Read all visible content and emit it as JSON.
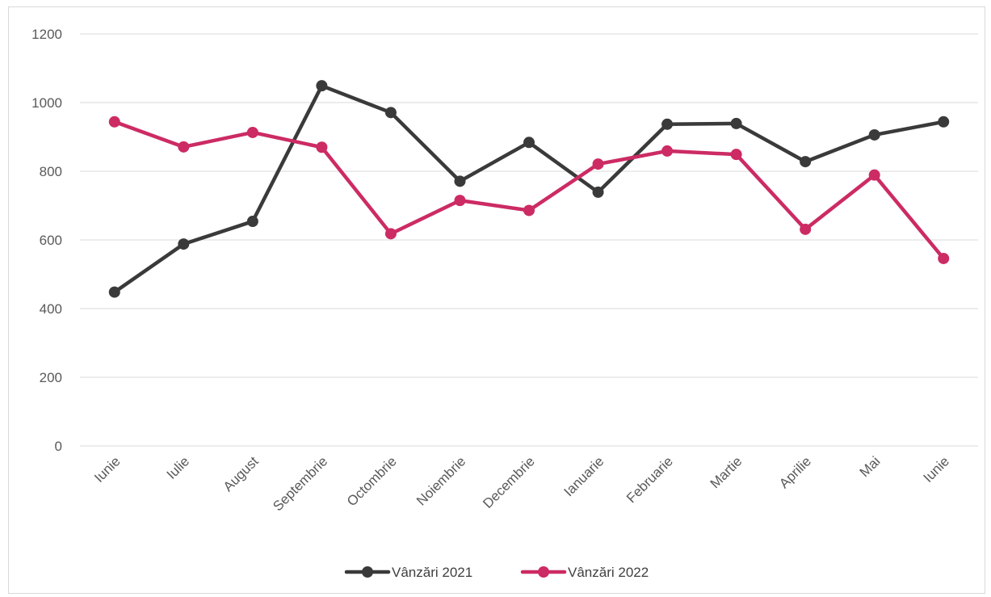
{
  "chart_data": {
    "type": "line",
    "categories": [
      "Iunie",
      "Iulie",
      "August",
      "Septembrie",
      "Octombrie",
      "Noiembrie",
      "Decembrie",
      "Ianuarie",
      "Februarie",
      "Martie",
      "Aprilie",
      "Mai",
      "Iunie"
    ],
    "series": [
      {
        "name": "Vânzări 2021",
        "color": "#3a3a3a",
        "values": [
          448,
          588,
          654,
          1049,
          971,
          771,
          884,
          739,
          937,
          939,
          828,
          906,
          944
        ]
      },
      {
        "name": "Vânzări 2022",
        "color": "#cc2b64",
        "values": [
          944,
          871,
          913,
          870,
          618,
          715,
          686,
          821,
          859,
          849,
          631,
          789,
          546
        ]
      }
    ],
    "ylim": [
      0,
      1200
    ],
    "yticks": [
      0,
      200,
      400,
      600,
      800,
      1000,
      1200
    ],
    "grid": true,
    "legend": "bottom"
  }
}
